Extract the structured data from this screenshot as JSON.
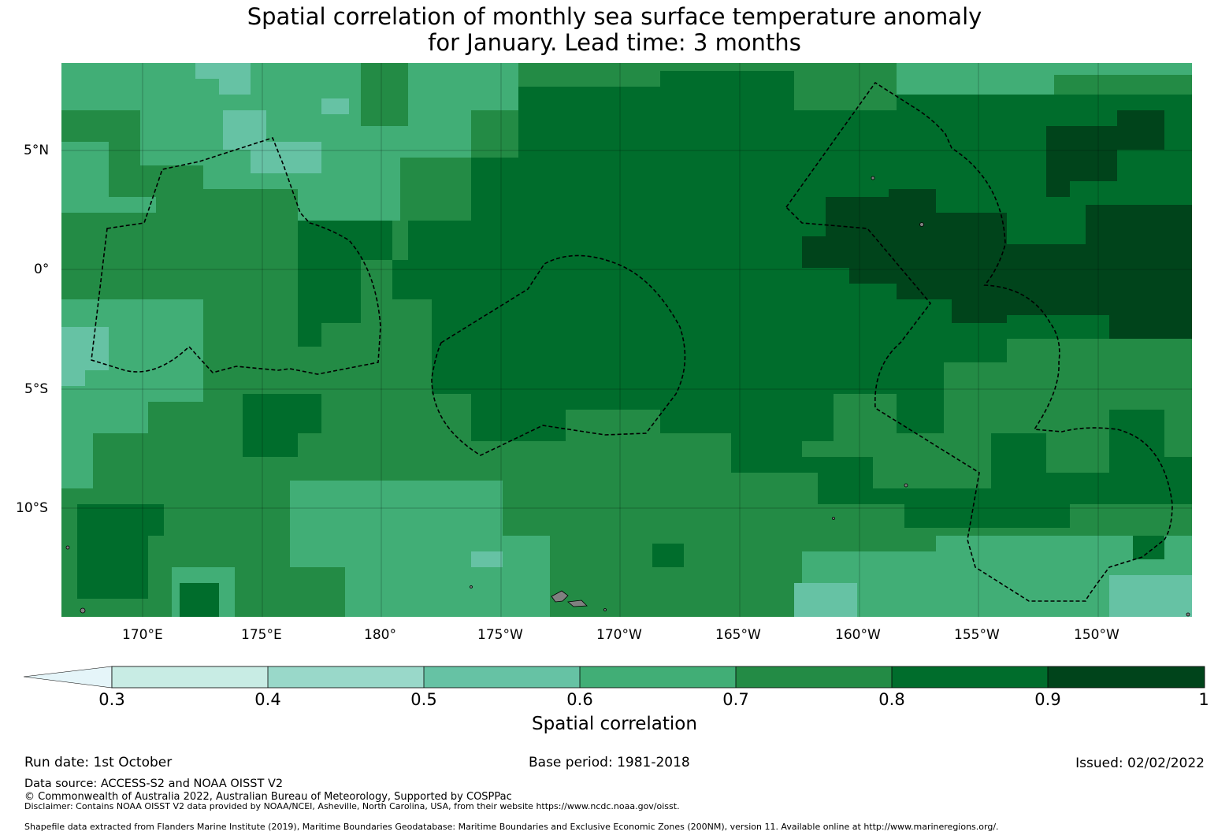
{
  "title": {
    "line1": "Spatial correlation of monthly sea surface temperature anomaly",
    "line2": "for January. Lead time: 3 months"
  },
  "map": {
    "lat_labels": [
      "5°N",
      "0°",
      "5°S",
      "10°S"
    ],
    "lon_labels": [
      "170°E",
      "175°E",
      "180°",
      "175°W",
      "170°W",
      "165°W",
      "160°W",
      "155°W",
      "150°W"
    ],
    "colors": {
      "0.3-0.4": "#c8ece4",
      "0.4-0.5": "#99d8c9",
      "0.5-0.6": "#66c2a4",
      "0.6-0.7": "#41ae76",
      "0.7-0.8": "#238b45",
      "0.8-0.9": "#006d2c",
      "0.9-1": "#00441b",
      "below": "#e5f5f9",
      "land": "#808080",
      "boundary": "#000000"
    }
  },
  "colorbar": {
    "label": "Spatial correlation",
    "ticks": [
      "0.3",
      "0.4",
      "0.5",
      "0.6",
      "0.7",
      "0.8",
      "0.9",
      "1"
    ]
  },
  "footer": {
    "run_date": "Run date: 1st October",
    "base_period": "Base period: 1981-2018",
    "issued": "Issued: 02/02/2022",
    "data_source": "Data source: ACCESS-S2 and NOAA OISST V2",
    "copyright": "© Commonwealth of Australia 2022, Australian Bureau of Meteorology, Supported by COSPPac",
    "disclaimer": "Disclaimer: Contains NOAA OISST V2 data provided by NOAA/NCEI, Asheville, North Carolina, USA, from their website https://www.ncdc.noaa.gov/oisst.",
    "shapefile": "Shapefile data extracted from Flanders Marine Institute (2019), Maritime Boundaries Geodatabase: Maritime Boundaries and Exclusive Economic Zones (200NM), version 11. Available online at http://www.marineregions.org/."
  }
}
